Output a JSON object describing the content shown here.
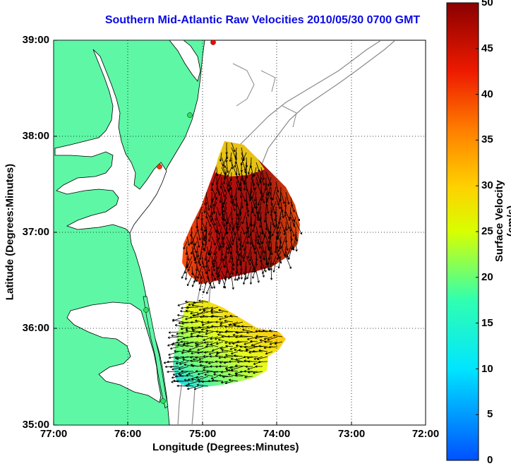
{
  "title": "Southern Mid-Atlantic Raw Velocities 2010/05/30 0700 GMT",
  "axes": {
    "xlabel": "Longitude (Degrees:Minutes)",
    "ylabel": "Latitude (Degrees:Minutes)",
    "xticks": [
      "77:00",
      "76:00",
      "75:00",
      "74:00",
      "73:00",
      "72:00"
    ],
    "yticks": [
      "39:00",
      "38:00",
      "37:00",
      "36:00",
      "35:00"
    ]
  },
  "colorbar": {
    "label": "Surface Velocity (cm/s)",
    "ticks": [
      "50",
      "45",
      "40",
      "35",
      "30",
      "25",
      "20",
      "15",
      "10",
      "5",
      "0"
    ],
    "min": 0,
    "max": 50
  },
  "colors": {
    "land": "#5ef7a6",
    "coast": "#000000",
    "bathymetry": "#8a8a8a",
    "title": "#0a0ae6",
    "vectors": "#000000"
  },
  "stations": [
    {
      "name": "station-1",
      "color": "#ff0000"
    },
    {
      "name": "station-2",
      "color": "#2ee05a"
    },
    {
      "name": "station-3",
      "color": "#ff3300"
    },
    {
      "name": "station-4",
      "color": "#2ee05a"
    },
    {
      "name": "station-5",
      "color": "#2ee05a"
    }
  ]
}
